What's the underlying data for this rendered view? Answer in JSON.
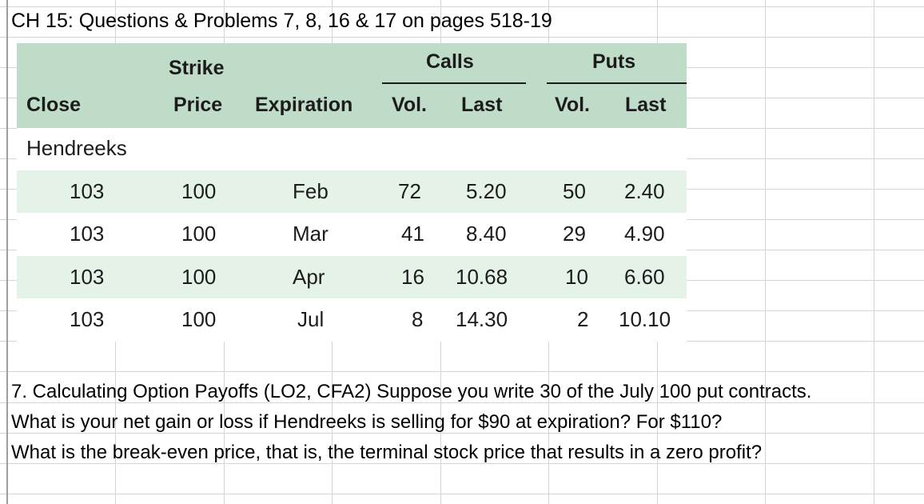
{
  "title": "CH 15: Questions & Problems 7, 8, 16 & 17 on pages 518-19",
  "table": {
    "group_headers": {
      "calls": "Calls",
      "puts": "Puts"
    },
    "strike_top": "Strike",
    "columns": [
      "Close",
      "Price",
      "Expiration",
      "Vol.",
      "Last",
      "Vol.",
      "Last"
    ],
    "company": "Hendreeks",
    "rows": [
      [
        "103",
        "100",
        "Feb",
        "72",
        "5.20",
        "50",
        "2.40"
      ],
      [
        "103",
        "100",
        "Mar",
        "41",
        "8.40",
        "29",
        "4.90"
      ],
      [
        "103",
        "100",
        "Apr",
        "16",
        "10.68",
        "10",
        "6.60"
      ],
      [
        "103",
        "100",
        "Jul",
        "8",
        "14.30",
        "2",
        "10.10"
      ]
    ]
  },
  "question": {
    "lines": [
      "7. Calculating Option Payoffs (LO2, CFA2) Suppose you write 30 of the July 100 put contracts.",
      "What is your net gain or loss if Hendreeks is selling for $90 at expiration? For $110?",
      "What is the break-even price, that is, the terminal stock price that results in a zero profit?"
    ]
  }
}
